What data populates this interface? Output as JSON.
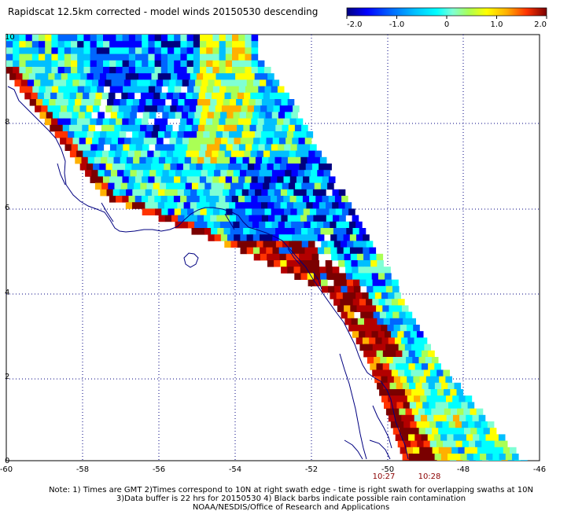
{
  "title": "Rapidscat 12.5km corrected - model winds 20150530 descending",
  "colorbar": {
    "tick_labels": [
      "-2.0",
      "-1.0",
      "0",
      "1.0",
      "2.0"
    ],
    "min": -2.0,
    "max": 2.0
  },
  "map": {
    "lon_range": [
      -60,
      -46
    ],
    "lat_range": [
      0,
      10
    ],
    "x_ticks": [
      "-60",
      "-58",
      "-56",
      "-54",
      "-52",
      "-50",
      "-48",
      "-46"
    ],
    "y_ticks": [
      "0",
      "2",
      "4",
      "6",
      "8",
      "10"
    ],
    "coast_color": "#000080",
    "grid_color": "#000080"
  },
  "swath_times": [
    {
      "label": "10:27",
      "color": "#8b0000"
    },
    {
      "label": "10:28",
      "color": "#8b0000"
    }
  ],
  "footer": {
    "line1": "Note: 1) Times are GMT 2)Times correspond to 10N at right swath edge - time is right swath for overlapping swaths at 10N",
    "line2": "3)Data buffer is 22 hrs for 20150530 4) Black barbs indicate possible rain contamination",
    "line3": "NOAA/NESDIS/Office of Research and Applications"
  },
  "colors": {
    "scale": [
      "#000080",
      "#0000ff",
      "#0066ff",
      "#00bfff",
      "#00ffff",
      "#7fffd4",
      "#aaff55",
      "#ffff00",
      "#ffb000",
      "#ff3300",
      "#b30000",
      "#7a0000"
    ],
    "coast": "#000080"
  }
}
